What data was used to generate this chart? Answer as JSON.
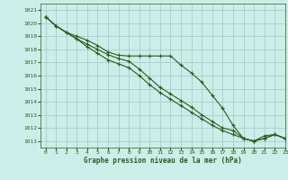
{
  "title": "Graphe pression niveau de la mer (hPa)",
  "bg_color": "#cceee8",
  "grid_color": "#aacccc",
  "line_color": "#2d5a1e",
  "xlim": [
    -0.5,
    23
  ],
  "ylim": [
    1010.5,
    1021.5
  ],
  "xticks": [
    0,
    1,
    2,
    3,
    4,
    5,
    6,
    7,
    8,
    9,
    10,
    11,
    12,
    13,
    14,
    15,
    16,
    17,
    18,
    19,
    20,
    21,
    22,
    23
  ],
  "yticks": [
    1011,
    1012,
    1013,
    1014,
    1015,
    1016,
    1017,
    1018,
    1019,
    1020,
    1021
  ],
  "series": [
    [
      1020.5,
      1019.8,
      1019.3,
      1019.0,
      1018.7,
      1018.3,
      1017.8,
      1017.55,
      1017.5,
      1017.5,
      1017.5,
      1017.5,
      1017.5,
      1016.8,
      1016.2,
      1015.5,
      1014.5,
      1013.5,
      1012.2,
      1011.2,
      1011.0,
      1011.4,
      1011.5,
      1011.2
    ],
    [
      1020.5,
      1019.8,
      1019.3,
      1018.8,
      1018.4,
      1018.0,
      1017.6,
      1017.3,
      1017.1,
      1016.5,
      1015.8,
      1015.1,
      1014.6,
      1014.1,
      1013.6,
      1013.0,
      1012.5,
      1012.0,
      1011.8,
      1011.2,
      1011.0,
      1011.2,
      1011.5,
      1011.2
    ],
    [
      1020.5,
      1019.8,
      1019.3,
      1018.8,
      1018.2,
      1017.7,
      1017.2,
      1016.9,
      1016.6,
      1016.0,
      1015.3,
      1014.7,
      1014.2,
      1013.7,
      1013.2,
      1012.7,
      1012.2,
      1011.8,
      1011.5,
      1011.2,
      1011.0,
      1011.2,
      1011.5,
      1011.2
    ]
  ]
}
